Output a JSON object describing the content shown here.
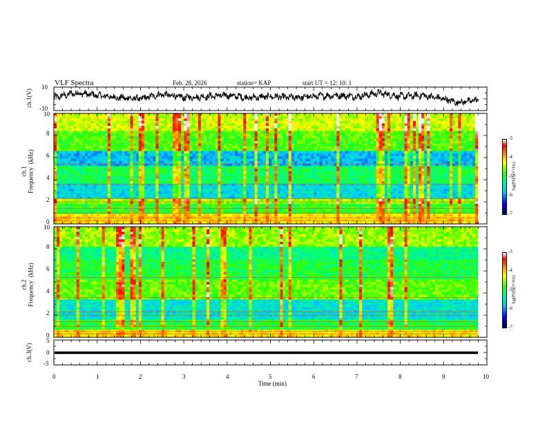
{
  "header": {
    "title": "VLF Spectra",
    "date": "Feb. 28, 2026",
    "station": "station= KAP",
    "start": "start  UT  =   12: 10: 1"
  },
  "colors": {
    "trace": "#000000",
    "spectrum_base": "#32e61e",
    "spectrum_blue": "#00b4ff",
    "spectrum_red": "#ff0000",
    "spectrum_yellow": "#f0f000"
  },
  "chart_data": [
    {
      "type": "line",
      "name": "ch1",
      "ylabel": "ch.1(V)",
      "ylim": [
        -10,
        10
      ],
      "yticks": [
        "10",
        "-10"
      ],
      "x_range_min": [
        0,
        10
      ],
      "description_of_values": "noisy waveform oscillating roughly between -5 and 7 V",
      "envelope": [
        {
          "t": 0.0,
          "v": 1
        },
        {
          "t": 0.5,
          "v": 5
        },
        {
          "t": 1.0,
          "v": 3
        },
        {
          "t": 1.5,
          "v": 1
        },
        {
          "t": 2.0,
          "v": 0
        },
        {
          "t": 2.5,
          "v": 4
        },
        {
          "t": 3.0,
          "v": 1
        },
        {
          "t": 3.5,
          "v": 2
        },
        {
          "t": 4.0,
          "v": 3
        },
        {
          "t": 4.5,
          "v": 1
        },
        {
          "t": 5.0,
          "v": 2
        },
        {
          "t": 5.5,
          "v": 1
        },
        {
          "t": 6.0,
          "v": 2
        },
        {
          "t": 6.5,
          "v": 3
        },
        {
          "t": 7.0,
          "v": 2
        },
        {
          "t": 7.5,
          "v": 5
        },
        {
          "t": 8.0,
          "v": 2
        },
        {
          "t": 8.5,
          "v": 3
        },
        {
          "t": 9.0,
          "v": 0
        },
        {
          "t": 9.3,
          "v": -3
        },
        {
          "t": 9.8,
          "v": -1
        }
      ]
    },
    {
      "type": "heatmap",
      "name": "ch2_spectrogram_ch1",
      "ylabel": "ch.1\nFrequency  (kHz)",
      "ylim": [
        0,
        10
      ],
      "yticks": [
        "0",
        "2",
        "4",
        "6",
        "8",
        "10"
      ],
      "x_range_min": [
        0,
        10
      ],
      "colorbar": {
        "label": "log(PSD)(V²/Hz)",
        "range": [
          -7,
          -3
        ],
        "ticks": [
          "-3",
          "-4",
          "-5",
          "-6",
          "-7"
        ]
      }
    },
    {
      "type": "heatmap",
      "name": "ch2_spectrogram",
      "ylabel": "ch.2\nFrequency  (kHz)",
      "ylim": [
        0,
        10
      ],
      "yticks": [
        "0",
        "2",
        "4",
        "6",
        "8",
        "10"
      ],
      "x_range_min": [
        0,
        10
      ],
      "colorbar": {
        "label": "log(PSD)(V²/Hz)",
        "range": [
          -7,
          -3
        ],
        "ticks": [
          "-3",
          "-4",
          "-5",
          "-6",
          "-7"
        ]
      }
    },
    {
      "type": "line",
      "name": "ch3",
      "ylabel": "ch.3(V)",
      "ylim": [
        -5,
        5
      ],
      "yticks": [
        "5",
        "0",
        "-5"
      ],
      "x_range_min": [
        0,
        10
      ],
      "band_v": [
        -0.6,
        0.4
      ]
    }
  ],
  "xaxis": {
    "label": "Time  (min)",
    "ticks": [
      "0",
      "1",
      "2",
      "3",
      "4",
      "5",
      "6",
      "7",
      "8",
      "9",
      "10"
    ]
  }
}
